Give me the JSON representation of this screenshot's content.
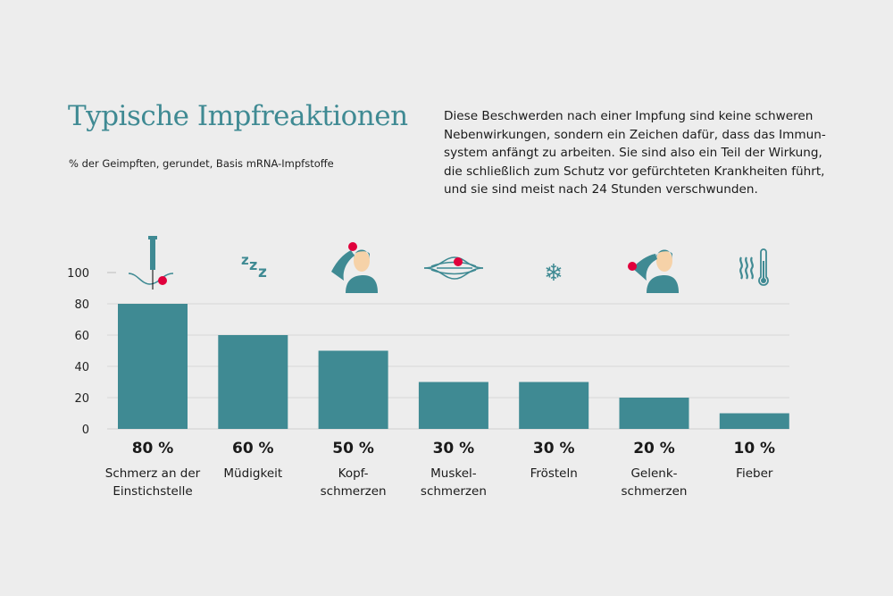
{
  "header": {
    "title": "Typische Impfreaktionen",
    "subtitle": "% der Geimpften, gerundet, Basis mRNA-Impfstoffe",
    "intro": "Diese Beschwerden nach einer Impfung sind keine schweren\nNebenwirkungen, sondern ein Zeichen dafür, dass das Immun-\nsystem anfängt zu arbeiten. Sie sind also ein Teil der Wirkung,\ndie schließlich zum Schutz vor gefürchteten Krankheiten führt,\nund sie sind meist nach 24 Stunden verschwunden."
  },
  "colors": {
    "bar": "#3f8a93",
    "accent": "#e0003c",
    "skin": "#f6d2a8",
    "grid": "#d6d6d6"
  },
  "chart_data": {
    "type": "bar",
    "title": "Typische Impfreaktionen",
    "categories": [
      "Schmerz an der\nEinstichstelle",
      "Müdigkeit",
      "Kopf-\nschmerzen",
      "Muskel-\nschmerzen",
      "Frösteln",
      "Gelenk-\nschmerzen",
      "Fieber"
    ],
    "values": [
      80,
      60,
      50,
      30,
      30,
      20,
      10
    ],
    "value_labels": [
      "80 %",
      "60 %",
      "50 %",
      "30 %",
      "30 %",
      "20 %",
      "10 %"
    ],
    "icons": [
      "syringe-icon",
      "sleep-zzz-icon",
      "headache-icon",
      "muscle-icon",
      "snowflake-icon",
      "joint-pain-icon",
      "thermometer-icon"
    ],
    "ylim": [
      0,
      100
    ],
    "yticks": [
      "0",
      "20",
      "40",
      "60",
      "80",
      "100"
    ],
    "grid": true,
    "xlabel": "",
    "ylabel": ""
  }
}
